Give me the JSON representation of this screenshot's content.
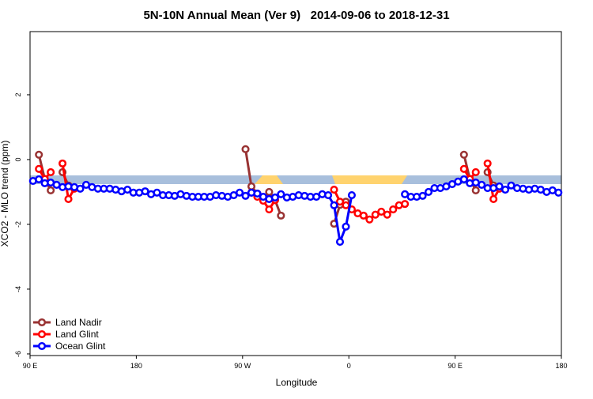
{
  "chart_data": {
    "type": "line",
    "title": "5N-10N Annual Mean (Ver 9)   2014-09-06 to 2018-12-31",
    "x_label": "Longitude",
    "y_label": "XCO2 - MLO trend (ppm)",
    "x": [
      92.5,
      97.5,
      102.5,
      107.5,
      112.5,
      117.5,
      122.5,
      127.5,
      132.5,
      137.5,
      142.5,
      147.5,
      152.5,
      157.5,
      162.5,
      167.5,
      172.5,
      177.5,
      182.5,
      187.5,
      192.5,
      197.5,
      202.5,
      207.5,
      212.5,
      217.5,
      222.5,
      227.5,
      232.5,
      237.5,
      242.5,
      247.5,
      252.5,
      257.5,
      262.5,
      267.5,
      272.5,
      277.5,
      282.5,
      287.5,
      292.5,
      297.5,
      302.5,
      307.5,
      312.5,
      317.5,
      322.5,
      327.5,
      332.5,
      337.5,
      342.5,
      347.5,
      352.5,
      357.5,
      362.5,
      367.5,
      372.5,
      377.5,
      382.5,
      387.5,
      392.5,
      397.5,
      402.5,
      407.5,
      412.5,
      417.5,
      422.5,
      427.5,
      432.5,
      437.5,
      442.5,
      447.5,
      452.5,
      457.5,
      462.5,
      467.5,
      472.5,
      477.5,
      482.5,
      487.5,
      492.5,
      497.5,
      502.5,
      507.5,
      512.5,
      517.5,
      522.5,
      527.5,
      532.5,
      537.5
    ],
    "series": [
      {
        "name": "Land Nadir",
        "color": "#993333",
        "values": [
          null,
          0.15,
          -0.6,
          -0.95,
          null,
          -0.39,
          -0.8,
          null,
          null,
          null,
          null,
          null,
          null,
          null,
          null,
          null,
          null,
          null,
          null,
          null,
          null,
          null,
          null,
          null,
          null,
          null,
          null,
          null,
          null,
          null,
          null,
          null,
          null,
          null,
          null,
          null,
          0.32,
          -0.83,
          -1.05,
          -1.2,
          -1.0,
          -1.25,
          -1.73,
          null,
          null,
          null,
          null,
          null,
          null,
          null,
          null,
          -1.98,
          -1.4,
          -1.3,
          null,
          null,
          null,
          null,
          null,
          null,
          null,
          null,
          null,
          null,
          null,
          null,
          null,
          null,
          null,
          null,
          null,
          null,
          null,
          0.15,
          -0.6,
          -0.95,
          null,
          -0.39,
          -0.8,
          null,
          null,
          null,
          null,
          null,
          null,
          null,
          null,
          null,
          null,
          null
        ]
      },
      {
        "name": "Land Glint",
        "color": "#ff0000",
        "values": [
          null,
          -0.29,
          -0.6,
          -0.39,
          null,
          -0.12,
          -1.22,
          -0.9,
          null,
          null,
          null,
          null,
          null,
          null,
          null,
          null,
          null,
          null,
          null,
          null,
          null,
          null,
          null,
          null,
          null,
          null,
          null,
          null,
          null,
          null,
          null,
          null,
          null,
          null,
          null,
          null,
          null,
          -1.02,
          -1.15,
          -1.27,
          -1.54,
          -1.25,
          null,
          null,
          null,
          null,
          null,
          null,
          null,
          null,
          null,
          -0.93,
          -1.3,
          -1.41,
          -1.54,
          -1.66,
          -1.73,
          -1.85,
          -1.7,
          -1.61,
          -1.7,
          -1.54,
          -1.41,
          -1.37,
          null,
          null,
          null,
          null,
          null,
          null,
          null,
          null,
          null,
          -0.29,
          -0.6,
          -0.39,
          null,
          -0.12,
          -1.22,
          -0.9,
          null,
          null,
          null,
          null,
          null,
          null,
          null,
          null,
          null,
          null
        ]
      },
      {
        "name": "Ocean Glint",
        "color": "#0000ff",
        "values": [
          -0.66,
          -0.61,
          -0.73,
          -0.71,
          -0.78,
          -0.85,
          -0.83,
          -0.85,
          -0.9,
          -0.78,
          -0.85,
          -0.9,
          -0.9,
          -0.9,
          -0.93,
          -0.98,
          -0.93,
          -1.02,
          -1.02,
          -0.98,
          -1.07,
          -1.02,
          -1.1,
          -1.1,
          -1.12,
          -1.07,
          -1.12,
          -1.15,
          -1.15,
          -1.15,
          -1.15,
          -1.1,
          -1.12,
          -1.15,
          -1.1,
          -1.02,
          -1.12,
          -1.02,
          -1.05,
          -1.15,
          -1.22,
          -1.17,
          -1.07,
          -1.17,
          -1.15,
          -1.1,
          -1.12,
          -1.15,
          -1.15,
          -1.07,
          -1.1,
          -1.41,
          -2.54,
          -2.07,
          -1.1,
          null,
          null,
          null,
          null,
          null,
          null,
          null,
          null,
          -1.07,
          -1.15,
          -1.15,
          -1.12,
          -1.0,
          -0.88,
          -0.88,
          -0.83,
          -0.76,
          -0.68,
          -0.61,
          -0.73,
          -0.71,
          -0.78,
          -0.88,
          -0.88,
          -0.83,
          -0.93,
          -0.8,
          -0.88,
          -0.9,
          -0.93,
          -0.9,
          -0.93,
          -1.0,
          -0.95,
          -1.02
        ]
      }
    ],
    "xlim": [
      90,
      540
    ],
    "xticks": [
      {
        "value": 90,
        "label": "90 E"
      },
      180,
      {
        "value": 270,
        "label": "90 W"
      },
      {
        "value": 360,
        "label": "0"
      },
      {
        "value": 450,
        "label": "90 E"
      },
      {
        "value": 540,
        "label": "180"
      }
    ],
    "ylim": [
      -6.05,
      3.95
    ],
    "yticks": [
      -6,
      -4,
      -2,
      0,
      2
    ],
    "legend": "bottom-left"
  }
}
